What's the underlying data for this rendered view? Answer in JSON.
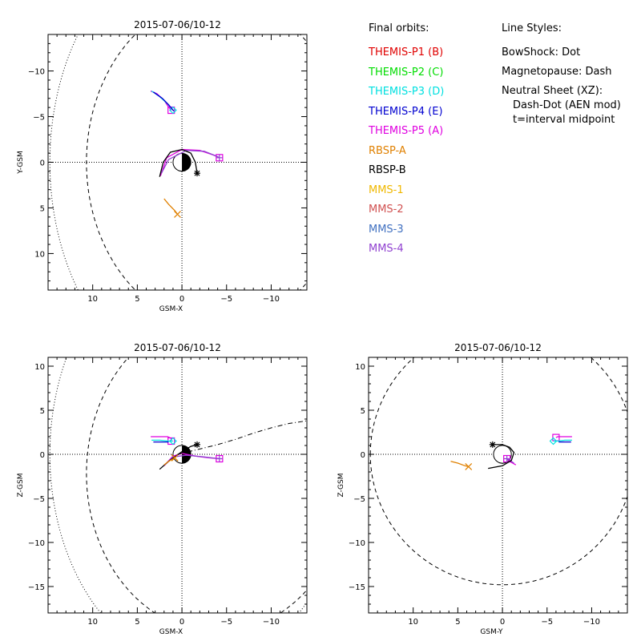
{
  "legend": {
    "title": "Final orbits:",
    "items": [
      {
        "label": "THEMIS-P1 (B)",
        "color": "#e00000"
      },
      {
        "label": "THEMIS-P2 (C)",
        "color": "#00dd00"
      },
      {
        "label": "THEMIS-P3 (D)",
        "color": "#00e0e0"
      },
      {
        "label": "THEMIS-P4 (E)",
        "color": "#0000d0"
      },
      {
        "label": "THEMIS-P5 (A)",
        "color": "#e000e0"
      },
      {
        "label": "RBSP-A",
        "color": "#e08000"
      },
      {
        "label": "RBSP-B",
        "color": "#000000"
      },
      {
        "label": "MMS-1",
        "color": "#f0b800"
      },
      {
        "label": "MMS-2",
        "color": "#d05050"
      },
      {
        "label": "MMS-3",
        "color": "#4070c0"
      },
      {
        "label": "MMS-4",
        "color": "#9040d0"
      }
    ]
  },
  "line_styles": {
    "title": "Line Styles:",
    "lines": [
      "BowShock: Dot",
      "Magnetopause: Dash",
      "Neutral Sheet (XZ):",
      "Dash-Dot (AEN mod)",
      "t=interval midpoint"
    ]
  },
  "chart_data": [
    {
      "type": "scatter",
      "title": "2015-07-06/10-12",
      "xlabel": "GSM-X",
      "ylabel": "Y-GSM",
      "xlim": [
        15,
        -14
      ],
      "ylim": [
        14,
        -14
      ],
      "xticks": [
        10,
        5,
        0,
        -5,
        -10
      ],
      "yticks": [
        -10,
        -5,
        0,
        5,
        10
      ],
      "grid": "origin crosshair",
      "series": [
        {
          "color": "#e000e0",
          "points": [
            [
              3.5,
              -7.8
            ],
            [
              2.8,
              -7.5
            ],
            [
              2.0,
              -6.8
            ],
            [
              1.6,
              -6.2
            ],
            [
              1.2,
              -5.7
            ]
          ],
          "marker": "square"
        },
        {
          "color": "#00e0e0",
          "points": [
            [
              3.4,
              -7.8
            ],
            [
              2.5,
              -7.2
            ],
            [
              1.6,
              -6.4
            ],
            [
              1.0,
              -5.7
            ]
          ],
          "marker": "diamond"
        },
        {
          "color": "#0000d0",
          "points": [
            [
              3.2,
              -7.7
            ],
            [
              2.2,
              -7.0
            ],
            [
              1.5,
              -6.3
            ],
            [
              0.9,
              -5.6
            ]
          ]
        },
        {
          "color": "#e000e0",
          "points": [
            [
              2.4,
              1.5
            ],
            [
              1.7,
              -0.5
            ],
            [
              0.0,
              -1.4
            ],
            [
              -2.0,
              -1.3
            ],
            [
              -3.5,
              -0.8
            ],
            [
              -4.2,
              -0.5
            ]
          ],
          "marker": "square"
        },
        {
          "color": "#9040d0",
          "points": [
            [
              2.3,
              1.2
            ],
            [
              1.5,
              -0.3
            ],
            [
              -0.5,
              -1.3
            ],
            [
              -2.5,
              -1.2
            ],
            [
              -3.8,
              -0.7
            ],
            [
              -4.2,
              -0.5
            ]
          ],
          "marker": "cross"
        },
        {
          "color": "#000000",
          "points": [
            [
              2.5,
              1.6
            ],
            [
              2.1,
              0.0
            ],
            [
              1.3,
              -1.1
            ],
            [
              0.0,
              -1.4
            ],
            [
              -1.0,
              -1.0
            ],
            [
              -1.5,
              0.0
            ],
            [
              -1.7,
              1.2
            ]
          ],
          "marker": "asterisk"
        },
        {
          "color": "#e08000",
          "points": [
            [
              2.0,
              4.0
            ],
            [
              1.5,
              4.6
            ],
            [
              0.8,
              5.3
            ],
            [
              0.5,
              5.7
            ]
          ],
          "marker": "x"
        }
      ]
    },
    {
      "type": "scatter",
      "title": "2015-07-06/10-12",
      "xlabel": "GSM-X",
      "ylabel": "Z-GSM",
      "xlim": [
        15,
        -14
      ],
      "ylim": [
        -18,
        11
      ],
      "xticks": [
        10,
        5,
        0,
        -5,
        -10
      ],
      "yticks": [
        -15,
        -10,
        -5,
        0,
        5,
        10
      ],
      "grid": "origin crosshair",
      "series": [
        {
          "color": "#e000e0",
          "points": [
            [
              3.5,
              2.0
            ],
            [
              2.5,
              2.0
            ],
            [
              1.6,
              2.0
            ],
            [
              1.2,
              1.8
            ],
            [
              1.2,
              1.5
            ]
          ],
          "marker": "square"
        },
        {
          "color": "#00e0e0",
          "points": [
            [
              3.4,
              1.6
            ],
            [
              2.5,
              1.6
            ],
            [
              1.5,
              1.5
            ],
            [
              1.0,
              1.5
            ]
          ],
          "marker": "diamond"
        },
        {
          "color": "#0000d0",
          "points": [
            [
              3.2,
              1.4
            ],
            [
              2.2,
              1.4
            ],
            [
              1.5,
              1.4
            ]
          ]
        },
        {
          "color": "#e000e0",
          "points": [
            [
              2.0,
              -1.3
            ],
            [
              1.0,
              -0.2
            ],
            [
              0.0,
              0.1
            ],
            [
              -1.5,
              -0.2
            ],
            [
              -3.0,
              -0.4
            ],
            [
              -4.2,
              -0.5
            ]
          ],
          "marker": "square"
        },
        {
          "color": "#9040d0",
          "points": [
            [
              1.8,
              -1.1
            ],
            [
              1.0,
              -0.3
            ],
            [
              -0.5,
              -0.1
            ],
            [
              -2.5,
              -0.3
            ],
            [
              -4.2,
              -0.5
            ]
          ],
          "marker": "cross"
        },
        {
          "color": "#000000",
          "points": [
            [
              2.5,
              -1.7
            ],
            [
              1.5,
              -0.8
            ],
            [
              0.0,
              0.3
            ],
            [
              -1.0,
              0.9
            ],
            [
              -1.7,
              1.1
            ]
          ],
          "marker": "asterisk"
        },
        {
          "color": "#e08000",
          "points": [
            [
              2.0,
              -1.2
            ],
            [
              1.5,
              -0.8
            ],
            [
              0.8,
              -0.4
            ]
          ],
          "marker": "x"
        },
        {
          "color": "#000000",
          "name_hidden": "neutral-sheet",
          "style": "dashdot",
          "points": [
            [
              0.5,
              0.0
            ],
            [
              -2,
              0.6
            ],
            [
              -4,
              1.1
            ],
            [
              -6,
              1.7
            ],
            [
              -8,
              2.4
            ],
            [
              -10,
              3.0
            ],
            [
              -12,
              3.5
            ],
            [
              -14,
              3.8
            ]
          ]
        }
      ]
    },
    {
      "type": "scatter",
      "title": "2015-07-06/10-12",
      "xlabel": "GSM-Y",
      "ylabel": "Z-GSM",
      "xlim": [
        15,
        -14
      ],
      "ylim": [
        -18,
        11
      ],
      "xticks": [
        10,
        5,
        0,
        -5,
        -10
      ],
      "yticks": [
        -15,
        -10,
        -5,
        0,
        5,
        10
      ],
      "grid": "origin crosshair",
      "series": [
        {
          "color": "#e000e0",
          "points": [
            [
              -7.8,
              2.0
            ],
            [
              -7.0,
              2.0
            ],
            [
              -6.5,
              2.0
            ],
            [
              -6.2,
              2.0
            ],
            [
              -6.0,
              1.9
            ]
          ],
          "marker": "square"
        },
        {
          "color": "#00e0e0",
          "points": [
            [
              -7.8,
              1.6
            ],
            [
              -7.0,
              1.6
            ],
            [
              -6.2,
              1.5
            ],
            [
              -5.7,
              1.5
            ]
          ],
          "marker": "diamond"
        },
        {
          "color": "#0000d0",
          "points": [
            [
              -7.7,
              1.4
            ],
            [
              -7.0,
              1.4
            ],
            [
              -6.3,
              1.4
            ]
          ]
        },
        {
          "color": "#e000e0",
          "points": [
            [
              -1.5,
              -1.2
            ],
            [
              -0.8,
              -0.8
            ],
            [
              -0.5,
              -0.5
            ]
          ],
          "marker": "square"
        },
        {
          "color": "#9040d0",
          "points": [
            [
              -1.3,
              -1.0
            ],
            [
              -0.7,
              -0.6
            ],
            [
              -0.5,
              -0.5
            ]
          ],
          "marker": "cross"
        },
        {
          "color": "#000000",
          "points": [
            [
              1.6,
              -1.6
            ],
            [
              0.0,
              -1.3
            ],
            [
              -1.0,
              -0.7
            ],
            [
              -1.3,
              0.2
            ],
            [
              -0.8,
              0.8
            ],
            [
              0.0,
              1.1
            ],
            [
              1.1,
              1.1
            ]
          ],
          "marker": "asterisk"
        },
        {
          "color": "#e08000",
          "points": [
            [
              5.8,
              -0.8
            ],
            [
              5.0,
              -1.0
            ],
            [
              4.2,
              -1.3
            ],
            [
              3.8,
              -1.4
            ]
          ],
          "marker": "x"
        }
      ]
    }
  ]
}
